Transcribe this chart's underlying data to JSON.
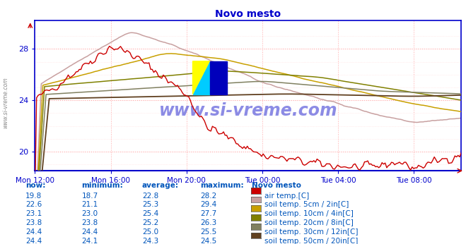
{
  "title": "Novo mesto",
  "title_color": "#0000cc",
  "bg_color": "#ffffff",
  "plot_bg_color": "#ffffff",
  "grid_color_major": "#ffaaaa",
  "grid_color_minor": "#ffdddd",
  "axis_color": "#0000cc",
  "tick_color": "#0000cc",
  "x_tick_labels": [
    "Mon 12:00",
    "Mon 16:00",
    "Mon 20:00",
    "Tue 00:00",
    "Tue 04:00",
    "Tue 08:00"
  ],
  "x_tick_positions": [
    0,
    240,
    480,
    720,
    960,
    1200
  ],
  "y_ticks": [
    20,
    24,
    28
  ],
  "ylim": [
    18.5,
    30.2
  ],
  "series_colors": [
    "#cc0000",
    "#c8a0a0",
    "#c8a000",
    "#808000",
    "#808060",
    "#604020"
  ],
  "series_labels": [
    "air temp.[C]",
    "soil temp. 5cm / 2in[C]",
    "soil temp. 10cm / 4in[C]",
    "soil temp. 20cm / 8in[C]",
    "soil temp. 30cm / 12in[C]",
    "soil temp. 50cm / 20in[C]"
  ],
  "table_headers": [
    "now:",
    "minimum:",
    "average:",
    "maximum:"
  ],
  "table_data": [
    [
      "19.8",
      "18.7",
      "22.8",
      "28.2"
    ],
    [
      "22.6",
      "21.1",
      "25.3",
      "29.4"
    ],
    [
      "23.1",
      "23.0",
      "25.4",
      "27.7"
    ],
    [
      "23.8",
      "23.8",
      "25.2",
      "26.3"
    ],
    [
      "24.4",
      "24.4",
      "25.0",
      "25.5"
    ],
    [
      "24.4",
      "24.1",
      "24.3",
      "24.5"
    ]
  ],
  "table_location": "Novo mesto",
  "watermark": "www.si-vreme.com",
  "watermark_color": "#1a1acc",
  "sidebar_text": "www.si-vreme.com"
}
